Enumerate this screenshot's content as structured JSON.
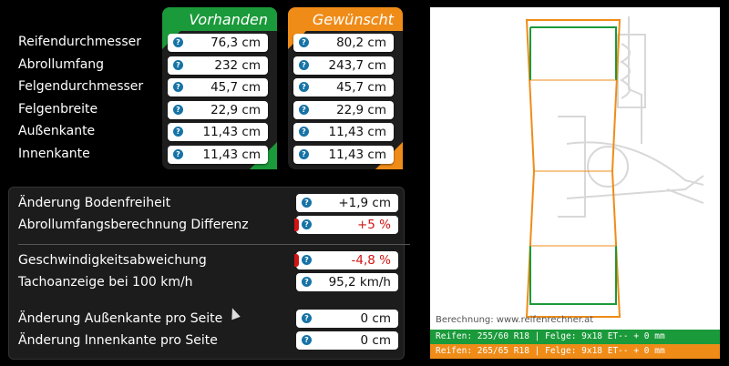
{
  "columns": {
    "vorhanden": "Vorhanden",
    "gewuenscht": "Gewünscht"
  },
  "rows": [
    {
      "label": "Reifendurchmesser",
      "vorhanden": "76,3 cm",
      "gewuenscht": "80,2 cm"
    },
    {
      "label": "Abrollumfang",
      "vorhanden": "232 cm",
      "gewuenscht": "243,7 cm"
    },
    {
      "label": "Felgendurchmesser",
      "vorhanden": "45,7 cm",
      "gewuenscht": "45,7 cm"
    },
    {
      "label": "Felgenbreite",
      "vorhanden": "22,9 cm",
      "gewuenscht": "22,9 cm"
    },
    {
      "label": "Außenkante",
      "vorhanden": "11,43 cm",
      "gewuenscht": "11,43 cm"
    },
    {
      "label": "Innenkante",
      "vorhanden": "11,43 cm",
      "gewuenscht": "11,43 cm"
    }
  ],
  "results": [
    {
      "label": "Änderung Bodenfreiheit",
      "value": "+1,9 cm"
    },
    {
      "label": "Abrollumfangsberechnung Differenz",
      "value": "+5 %"
    },
    {
      "label": "Geschwindigkeitsabweichung",
      "value": "-4,8 %"
    },
    {
      "label": "Tachoanzeige bei 100 km/h",
      "value": "95,2 km/h"
    },
    {
      "label": "Änderung Außenkante pro Seite",
      "value": "0 cm"
    },
    {
      "label": "Änderung Innenkante pro Seite",
      "value": "0 cm"
    }
  ],
  "info_glyph": "?",
  "diagram": {
    "credit": "Berechnung: www.reifenrechner.at",
    "green_bar": "Reifen: 255/60 R18  |  Felge: 9x18 ET-- + 0 mm",
    "orange_bar": "Reifen: 265/65 R18  |  Felge: 9x18 ET-- + 0 mm"
  },
  "colors": {
    "green": "#1a9a3a",
    "orange": "#ef8c18",
    "negative": "#d01414",
    "info": "#1673a6"
  }
}
